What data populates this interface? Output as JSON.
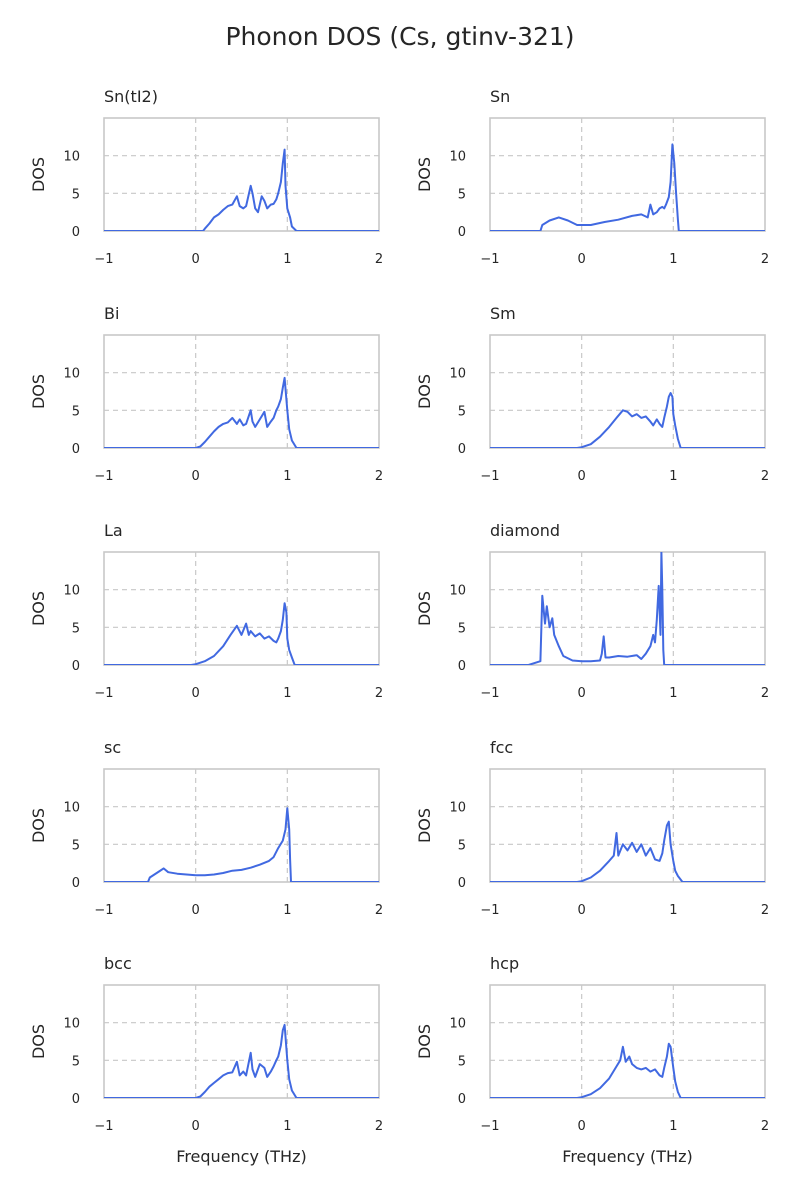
{
  "figure": {
    "title": "Phonon DOS (Cs, gtinv-321)"
  },
  "chart_data": [
    {
      "type": "line",
      "title": "Sn(tI2)",
      "xlabel": "",
      "ylabel": "DOS",
      "xlim": [
        -1,
        2
      ],
      "ylim": [
        0,
        15
      ],
      "xticks": [
        "−1",
        "0",
        "1",
        "2"
      ],
      "yticks": [
        "0",
        "5",
        "10"
      ],
      "grid": true,
      "color": "#4169e1",
      "series": [
        {
          "x": [
            -1,
            0.08,
            0.1,
            0.15,
            0.2,
            0.25,
            0.3,
            0.35,
            0.4,
            0.45,
            0.48,
            0.52,
            0.55,
            0.6,
            0.62,
            0.65,
            0.68,
            0.72,
            0.75,
            0.78,
            0.82,
            0.85,
            0.88,
            0.9,
            0.93,
            0.95,
            0.97,
            0.98,
            1.0,
            1.03,
            1.05,
            1.1,
            2
          ],
          "y": [
            0,
            0,
            0.3,
            1.0,
            1.8,
            2.2,
            2.8,
            3.3,
            3.5,
            4.6,
            3.3,
            3.0,
            3.3,
            6.0,
            5.0,
            3.0,
            2.5,
            4.6,
            4.0,
            3.0,
            3.5,
            3.6,
            4.2,
            5.0,
            6.5,
            9.0,
            10.8,
            6.0,
            3.0,
            1.8,
            0.6,
            0,
            0
          ]
        }
      ]
    },
    {
      "type": "line",
      "title": "Sn",
      "xlabel": "",
      "ylabel": "DOS",
      "xlim": [
        -1,
        2
      ],
      "ylim": [
        0,
        15
      ],
      "xticks": [
        "−1",
        "0",
        "1",
        "2"
      ],
      "yticks": [
        "0",
        "5",
        "10"
      ],
      "grid": true,
      "color": "#4169e1",
      "series": [
        {
          "x": [
            -1,
            -0.45,
            -0.43,
            -0.35,
            -0.25,
            -0.15,
            -0.05,
            0.1,
            0.25,
            0.4,
            0.55,
            0.65,
            0.72,
            0.75,
            0.78,
            0.82,
            0.85,
            0.88,
            0.9,
            0.92,
            0.95,
            0.97,
            0.99,
            1.01,
            1.03,
            1.05,
            1.06,
            2
          ],
          "y": [
            0,
            0,
            0.8,
            1.4,
            1.8,
            1.4,
            0.8,
            0.8,
            1.2,
            1.5,
            2.0,
            2.2,
            1.8,
            3.5,
            2.2,
            2.5,
            3.0,
            3.2,
            3.0,
            3.5,
            4.5,
            6.5,
            11.5,
            9.0,
            5.0,
            1.5,
            0,
            0
          ]
        }
      ]
    },
    {
      "type": "line",
      "title": "Bi",
      "xlabel": "",
      "ylabel": "DOS",
      "xlim": [
        -1,
        2
      ],
      "ylim": [
        0,
        15
      ],
      "xticks": [
        "−1",
        "0",
        "1",
        "2"
      ],
      "yticks": [
        "0",
        "5",
        "10"
      ],
      "grid": true,
      "color": "#4169e1",
      "series": [
        {
          "x": [
            -1,
            0.0,
            0.05,
            0.1,
            0.15,
            0.2,
            0.25,
            0.3,
            0.35,
            0.4,
            0.45,
            0.48,
            0.52,
            0.55,
            0.6,
            0.62,
            0.65,
            0.7,
            0.75,
            0.78,
            0.82,
            0.85,
            0.88,
            0.9,
            0.93,
            0.95,
            0.97,
            1.0,
            1.02,
            1.05,
            1.1,
            2
          ],
          "y": [
            0,
            0,
            0.2,
            0.8,
            1.5,
            2.2,
            2.8,
            3.2,
            3.4,
            4.0,
            3.2,
            3.8,
            3.0,
            3.2,
            5.0,
            3.5,
            2.8,
            3.8,
            4.8,
            2.8,
            3.5,
            4.0,
            5.0,
            5.5,
            6.5,
            8.0,
            9.3,
            5.0,
            2.5,
            1.0,
            0,
            0
          ]
        }
      ]
    },
    {
      "type": "line",
      "title": "Sm",
      "xlabel": "",
      "ylabel": "DOS",
      "xlim": [
        -1,
        2
      ],
      "ylim": [
        0,
        15
      ],
      "xticks": [
        "−1",
        "0",
        "1",
        "2"
      ],
      "yticks": [
        "0",
        "5",
        "10"
      ],
      "grid": true,
      "color": "#4169e1",
      "series": [
        {
          "x": [
            -1,
            -0.05,
            0.0,
            0.1,
            0.2,
            0.3,
            0.38,
            0.45,
            0.5,
            0.55,
            0.6,
            0.65,
            0.7,
            0.75,
            0.78,
            0.82,
            0.85,
            0.88,
            0.9,
            0.93,
            0.95,
            0.97,
            0.99,
            1.0,
            1.02,
            1.05,
            1.08,
            2
          ],
          "y": [
            0,
            0,
            0.1,
            0.5,
            1.5,
            2.8,
            4.0,
            5.0,
            4.8,
            4.2,
            4.5,
            4.0,
            4.2,
            3.5,
            3.0,
            3.8,
            3.2,
            2.8,
            4.0,
            5.5,
            6.8,
            7.3,
            6.8,
            4.5,
            3.0,
            1.2,
            0,
            0
          ]
        }
      ]
    },
    {
      "type": "line",
      "title": "La",
      "xlabel": "",
      "ylabel": "DOS",
      "xlim": [
        -1,
        2
      ],
      "ylim": [
        0,
        15
      ],
      "xticks": [
        "−1",
        "0",
        "1",
        "2"
      ],
      "yticks": [
        "0",
        "5",
        "10"
      ],
      "grid": true,
      "color": "#4169e1",
      "series": [
        {
          "x": [
            -1,
            -0.05,
            0.0,
            0.1,
            0.2,
            0.3,
            0.38,
            0.45,
            0.5,
            0.55,
            0.58,
            0.6,
            0.65,
            0.7,
            0.75,
            0.8,
            0.85,
            0.88,
            0.9,
            0.93,
            0.95,
            0.97,
            0.99,
            1.0,
            1.02,
            1.05,
            1.08,
            2
          ],
          "y": [
            0,
            0,
            0.1,
            0.5,
            1.2,
            2.5,
            4.0,
            5.2,
            4.0,
            5.5,
            4.0,
            4.5,
            3.8,
            4.2,
            3.5,
            3.8,
            3.2,
            3.0,
            3.5,
            4.5,
            6.0,
            8.2,
            7.0,
            3.5,
            2.0,
            1.0,
            0,
            0
          ]
        }
      ]
    },
    {
      "type": "line",
      "title": "diamond",
      "xlabel": "",
      "ylabel": "DOS",
      "xlim": [
        -1,
        2
      ],
      "ylim": [
        0,
        15
      ],
      "xticks": [
        "−1",
        "0",
        "1",
        "2"
      ],
      "yticks": [
        "0",
        "5",
        "10"
      ],
      "grid": true,
      "color": "#4169e1",
      "series": [
        {
          "x": [
            -1,
            -0.58,
            -0.45,
            -0.43,
            -0.4,
            -0.38,
            -0.35,
            -0.32,
            -0.3,
            -0.25,
            -0.2,
            -0.1,
            0.0,
            0.1,
            0.2,
            0.22,
            0.24,
            0.26,
            0.3,
            0.4,
            0.5,
            0.6,
            0.65,
            0.7,
            0.75,
            0.78,
            0.8,
            0.82,
            0.84,
            0.86,
            0.87,
            0.88,
            0.89,
            0.9,
            2
          ],
          "y": [
            0,
            0,
            0.5,
            9.2,
            5.5,
            7.8,
            5.0,
            6.2,
            4.0,
            2.5,
            1.2,
            0.6,
            0.5,
            0.5,
            0.6,
            1.5,
            3.8,
            1.0,
            1.0,
            1.2,
            1.1,
            1.3,
            0.8,
            1.5,
            2.5,
            4.0,
            3.0,
            6.0,
            10.5,
            4.0,
            15.0,
            10.0,
            2.0,
            0,
            0
          ]
        }
      ]
    },
    {
      "type": "line",
      "title": "sc",
      "xlabel": "",
      "ylabel": "DOS",
      "xlim": [
        -1,
        2
      ],
      "ylim": [
        0,
        15
      ],
      "xticks": [
        "−1",
        "0",
        "1",
        "2"
      ],
      "yticks": [
        "0",
        "5",
        "10"
      ],
      "grid": true,
      "color": "#4169e1",
      "series": [
        {
          "x": [
            -1,
            -0.52,
            -0.5,
            -0.45,
            -0.4,
            -0.35,
            -0.3,
            -0.2,
            -0.1,
            0.0,
            0.1,
            0.2,
            0.3,
            0.4,
            0.5,
            0.6,
            0.7,
            0.8,
            0.85,
            0.9,
            0.95,
            0.98,
            1.0,
            1.02,
            1.03,
            1.04,
            2
          ],
          "y": [
            0,
            0,
            0.6,
            1.0,
            1.4,
            1.8,
            1.3,
            1.1,
            1.0,
            0.9,
            0.9,
            1.0,
            1.2,
            1.5,
            1.6,
            1.9,
            2.3,
            2.8,
            3.3,
            4.5,
            5.5,
            7.0,
            9.8,
            7.0,
            3.0,
            0,
            0
          ]
        }
      ]
    },
    {
      "type": "line",
      "title": "fcc",
      "xlabel": "",
      "ylabel": "DOS",
      "xlim": [
        -1,
        2
      ],
      "ylim": [
        0,
        15
      ],
      "xticks": [
        "−1",
        "0",
        "1",
        "2"
      ],
      "yticks": [
        "0",
        "5",
        "10"
      ],
      "grid": true,
      "color": "#4169e1",
      "series": [
        {
          "x": [
            -1,
            -0.05,
            0.0,
            0.1,
            0.2,
            0.3,
            0.35,
            0.38,
            0.4,
            0.45,
            0.5,
            0.55,
            0.6,
            0.65,
            0.7,
            0.75,
            0.8,
            0.85,
            0.88,
            0.9,
            0.93,
            0.95,
            0.97,
            1.0,
            1.02,
            1.05,
            1.1,
            2
          ],
          "y": [
            0,
            0,
            0.1,
            0.6,
            1.5,
            2.8,
            3.5,
            6.5,
            3.5,
            5.0,
            4.2,
            5.2,
            4.0,
            5.0,
            3.5,
            4.5,
            3.0,
            2.8,
            3.8,
            5.5,
            7.5,
            8.0,
            5.0,
            2.8,
            1.5,
            0.8,
            0,
            0
          ]
        }
      ]
    },
    {
      "type": "line",
      "title": "bcc",
      "xlabel": "Frequency (THz)",
      "ylabel": "DOS",
      "xlim": [
        -1,
        2
      ],
      "ylim": [
        0,
        15
      ],
      "xticks": [
        "−1",
        "0",
        "1",
        "2"
      ],
      "yticks": [
        "0",
        "5",
        "10"
      ],
      "grid": true,
      "color": "#4169e1",
      "series": [
        {
          "x": [
            -1,
            0.0,
            0.05,
            0.1,
            0.15,
            0.2,
            0.25,
            0.3,
            0.35,
            0.4,
            0.45,
            0.48,
            0.52,
            0.55,
            0.6,
            0.62,
            0.65,
            0.7,
            0.75,
            0.78,
            0.82,
            0.85,
            0.88,
            0.9,
            0.93,
            0.95,
            0.97,
            1.0,
            1.02,
            1.05,
            1.1,
            2
          ],
          "y": [
            0,
            0,
            0.2,
            0.8,
            1.5,
            2.0,
            2.5,
            3.0,
            3.3,
            3.4,
            4.8,
            3.0,
            3.5,
            3.0,
            6.0,
            3.8,
            2.8,
            4.5,
            4.0,
            2.8,
            3.5,
            4.2,
            5.0,
            5.5,
            7.0,
            9.0,
            9.7,
            5.0,
            2.5,
            1.0,
            0,
            0
          ]
        }
      ]
    },
    {
      "type": "line",
      "title": "hcp",
      "xlabel": "Frequency (THz)",
      "ylabel": "DOS",
      "xlim": [
        -1,
        2
      ],
      "ylim": [
        0,
        15
      ],
      "xticks": [
        "−1",
        "0",
        "1",
        "2"
      ],
      "yticks": [
        "0",
        "5",
        "10"
      ],
      "grid": true,
      "color": "#4169e1",
      "series": [
        {
          "x": [
            -1,
            -0.05,
            0.0,
            0.1,
            0.2,
            0.3,
            0.38,
            0.42,
            0.45,
            0.48,
            0.52,
            0.55,
            0.6,
            0.65,
            0.7,
            0.75,
            0.8,
            0.85,
            0.88,
            0.9,
            0.93,
            0.95,
            0.97,
            1.0,
            1.02,
            1.05,
            1.08,
            2
          ],
          "y": [
            0,
            0,
            0.1,
            0.5,
            1.3,
            2.6,
            4.2,
            5.0,
            6.8,
            4.8,
            5.5,
            4.5,
            4.0,
            3.8,
            4.0,
            3.5,
            3.8,
            3.0,
            2.8,
            4.0,
            5.5,
            7.2,
            6.8,
            4.0,
            2.2,
            0.8,
            0,
            0
          ]
        }
      ]
    }
  ]
}
